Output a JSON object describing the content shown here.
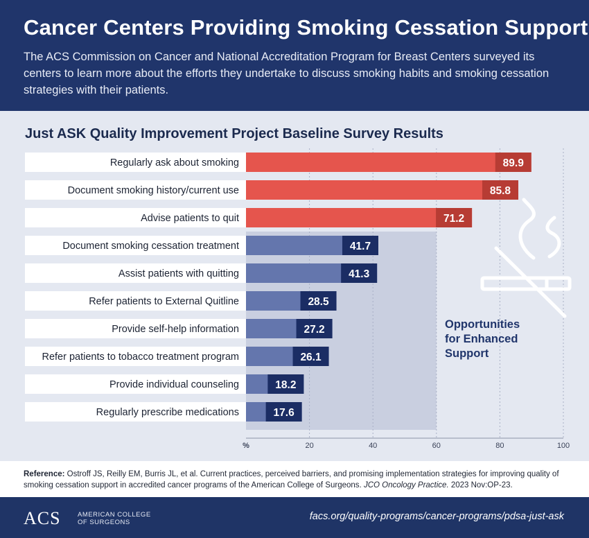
{
  "header": {
    "title": "Cancer Centers Providing Smoking Cessation Support",
    "intro": "The ACS Commission on Cancer and National Accreditation Program for Breast Centers surveyed its centers to learn more about the efforts they undertake to discuss smoking habits and smoking cessation strategies with their patients."
  },
  "chart_data": {
    "type": "bar",
    "orientation": "horizontal",
    "title": "Just ASK Quality Improvement Project Baseline Survey Results",
    "xlabel": "%",
    "xlim": [
      0,
      100
    ],
    "x_ticks": [
      "%",
      "20",
      "40",
      "60",
      "80",
      "100"
    ],
    "grid": true,
    "categories": [
      "Regularly ask about smoking",
      "Document smoking history/current use",
      "Advise patients to quit",
      "Document smoking cessation treatment",
      "Assist patients with quitting",
      "Refer patients to External Quitline",
      "Provide self-help information",
      "Refer patients to tobacco treatment program",
      "Provide individual counseling",
      "Regularly prescribe medications"
    ],
    "values": [
      89.9,
      85.8,
      71.2,
      41.7,
      41.3,
      28.5,
      27.2,
      26.1,
      18.2,
      17.6
    ],
    "value_labels": [
      "89.9",
      "85.8",
      "71.2",
      "41.7",
      "41.3",
      "28.5",
      "27.2",
      "26.1",
      "18.2",
      "17.6"
    ],
    "highlight_count": 3,
    "colors": {
      "highlight_bar": "#e5554d",
      "highlight_label": "#b73c34",
      "standard_bar": "#6476ad",
      "standard_label": "#1b2d64",
      "opportunity_band": "#c9cfe0",
      "label_strip": "#ffffff"
    },
    "opportunity_band_range": [
      0,
      60
    ],
    "annotation": "Opportunities for Enhanced Support",
    "annotation_icon": "no-smoking-icon"
  },
  "reference": {
    "label": "Reference:",
    "text": " Ostroff JS, Reilly EM, Burris JL, et al. Current practices, perceived barriers, and promising implementation strategies for improving quality of smoking cessation support in accredited cancer programs of the American College of Surgeons. ",
    "journal": "JCO Oncology Practice.",
    "citation": " 2023 Nov:OP-23."
  },
  "footer": {
    "logo": "ACS",
    "logo_subtitle": "AMERICAN COLLEGE OF SURGEONS",
    "url": "facs.org/quality-programs/cancer-programs/pdsa-just-ask"
  }
}
